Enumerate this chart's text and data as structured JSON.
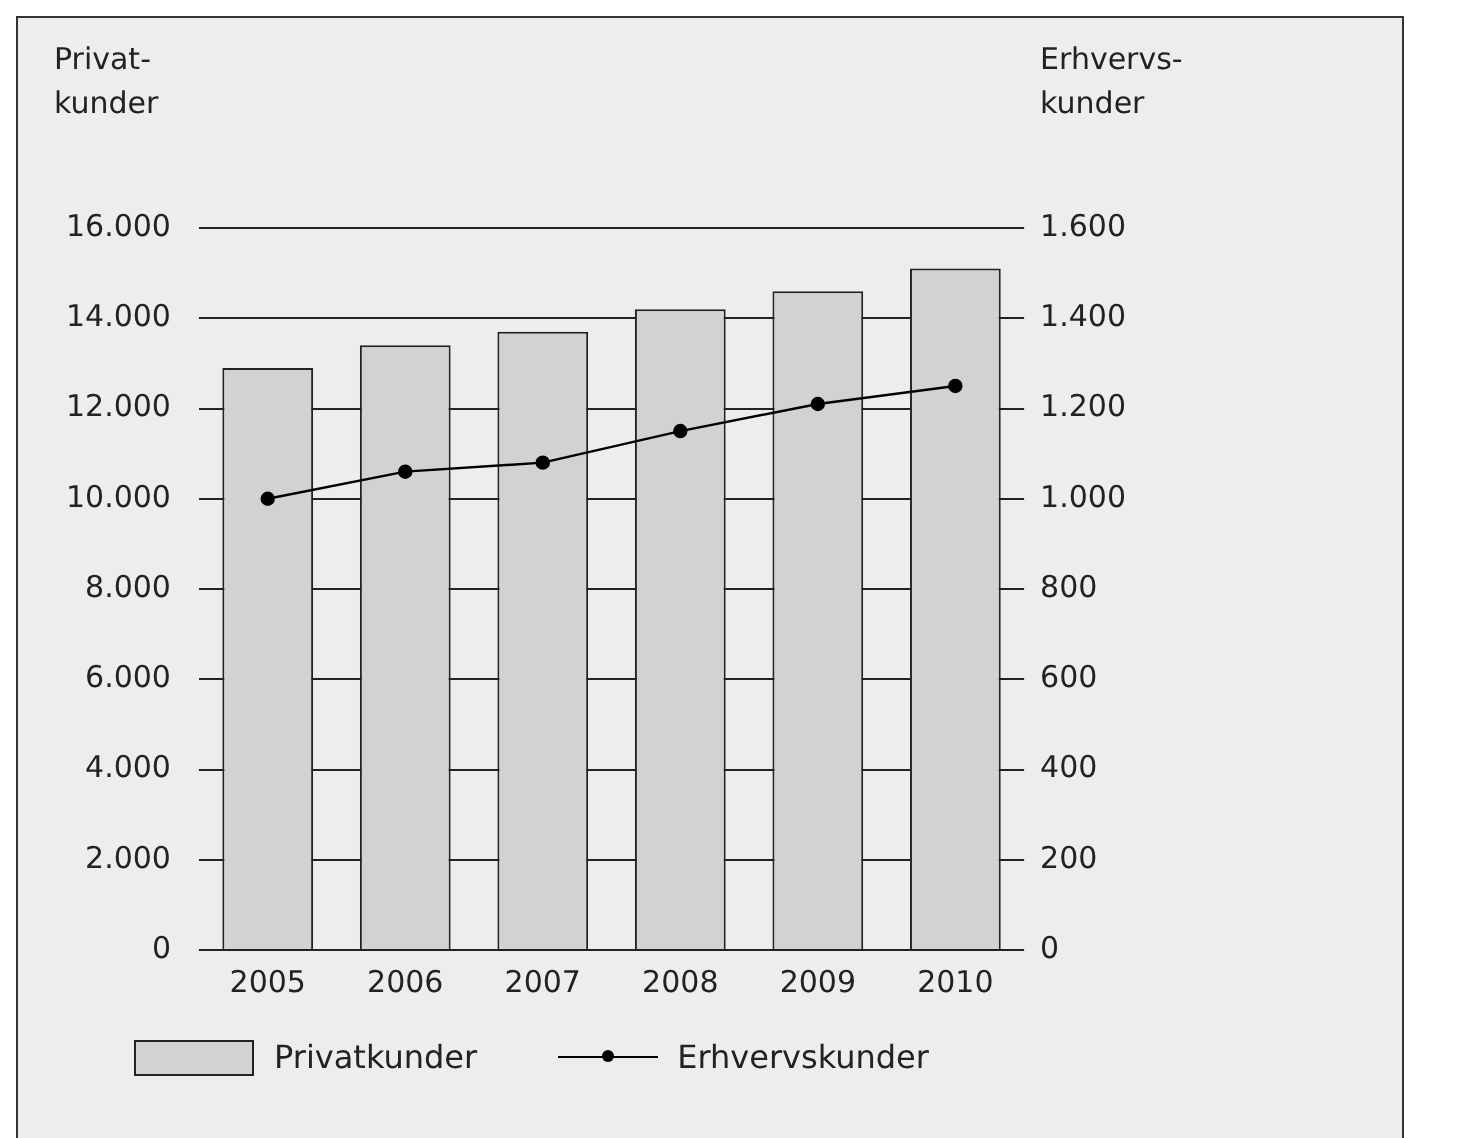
{
  "chart_data": {
    "type": "bar",
    "categories": [
      "2005",
      "2006",
      "2007",
      "2008",
      "2009",
      "2010"
    ],
    "ylabel": "Privat-\nkunder",
    "y2label": "Erhvervs-\nkunder",
    "series": [
      {
        "name": "Privatkunder",
        "color": "#d1d2d4",
        "values": [
          12900,
          13400,
          13700,
          14200,
          14600,
          15100
        ]
      },
      {
        "name": "Erhvervskunder",
        "type": "line",
        "axis": "y2",
        "color": "#000000",
        "marker": "circle",
        "values": [
          1000,
          1060,
          1080,
          1150,
          1210,
          1250
        ]
      }
    ],
    "ylim": [
      0,
      16000
    ],
    "yticks": [
      {
        "value": 0,
        "label": "0"
      },
      {
        "value": 2000,
        "label": "2.000"
      },
      {
        "value": 4000,
        "label": "4.000"
      },
      {
        "value": 6000,
        "label": "6.000"
      },
      {
        "value": 8000,
        "label": "8.000"
      },
      {
        "value": 10000,
        "label": "10.000"
      },
      {
        "value": 12000,
        "label": "12.000"
      },
      {
        "value": 14000,
        "label": "14.000"
      },
      {
        "value": 16000,
        "label": "16.000"
      }
    ],
    "y2lim": [
      0,
      1600
    ],
    "y2ticks": [
      {
        "value": 0,
        "label": "0"
      },
      {
        "value": 200,
        "label": "200"
      },
      {
        "value": 400,
        "label": "400"
      },
      {
        "value": 600,
        "label": "600"
      },
      {
        "value": 800,
        "label": "800"
      },
      {
        "value": 1000,
        "label": "1.000"
      },
      {
        "value": 1200,
        "label": "1.200"
      },
      {
        "value": 1400,
        "label": "1.400"
      },
      {
        "value": 1600,
        "label": "1.600"
      }
    ],
    "grid": "y",
    "legend": "bottom"
  }
}
